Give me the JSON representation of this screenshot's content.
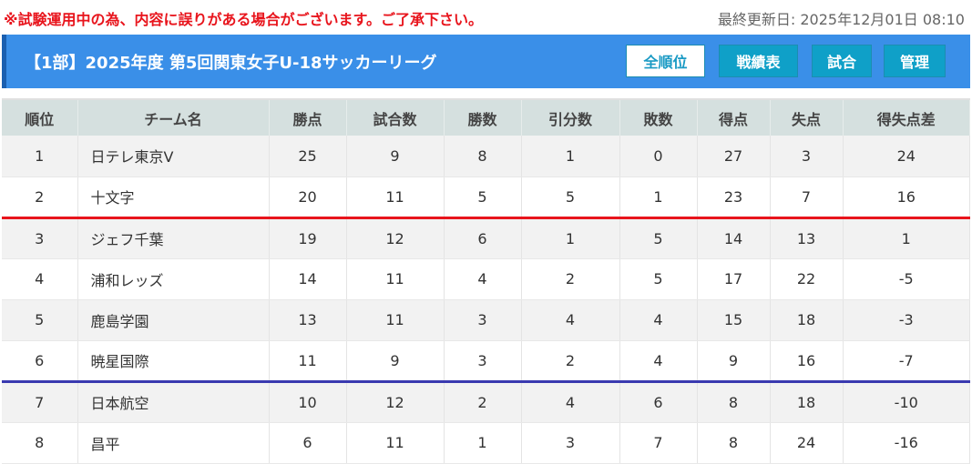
{
  "notice": "※試験運用中の為、内容に誤りがある場合がございます。ご了承下さい。",
  "updated": "最終更新日: 2025年12月01日 08:10",
  "header": {
    "title": "【1部】2025年度 第5回関東女子U-18サッカーリーグ",
    "buttons": [
      "全順位",
      "戦績表",
      "試合",
      "管理"
    ]
  },
  "colors": {
    "header": "#3a8fe8",
    "button": "#0fa0c8",
    "promotion_line": "#e8141c",
    "relegation_line": "#3a3ab0"
  },
  "table": {
    "columns": [
      "順位",
      "チーム名",
      "勝点",
      "試合数",
      "勝数",
      "引分数",
      "敗数",
      "得点",
      "失点",
      "得失点差"
    ],
    "rows": [
      [
        "1",
        "日テレ東京V",
        "25",
        "9",
        "8",
        "1",
        "0",
        "27",
        "3",
        "24"
      ],
      [
        "2",
        "十文字",
        "20",
        "11",
        "5",
        "5",
        "1",
        "23",
        "7",
        "16"
      ],
      [
        "3",
        "ジェフ千葉",
        "19",
        "12",
        "6",
        "1",
        "5",
        "14",
        "13",
        "1"
      ],
      [
        "4",
        "浦和レッズ",
        "14",
        "11",
        "4",
        "2",
        "5",
        "17",
        "22",
        "-5"
      ],
      [
        "5",
        "鹿島学園",
        "13",
        "11",
        "3",
        "4",
        "4",
        "15",
        "18",
        "-3"
      ],
      [
        "6",
        "暁星国際",
        "11",
        "9",
        "3",
        "2",
        "4",
        "9",
        "16",
        "-7"
      ],
      [
        "7",
        "日本航空",
        "10",
        "12",
        "2",
        "4",
        "6",
        "8",
        "18",
        "-10"
      ],
      [
        "8",
        "昌平",
        "6",
        "11",
        "1",
        "3",
        "7",
        "8",
        "24",
        "-16"
      ]
    ]
  }
}
